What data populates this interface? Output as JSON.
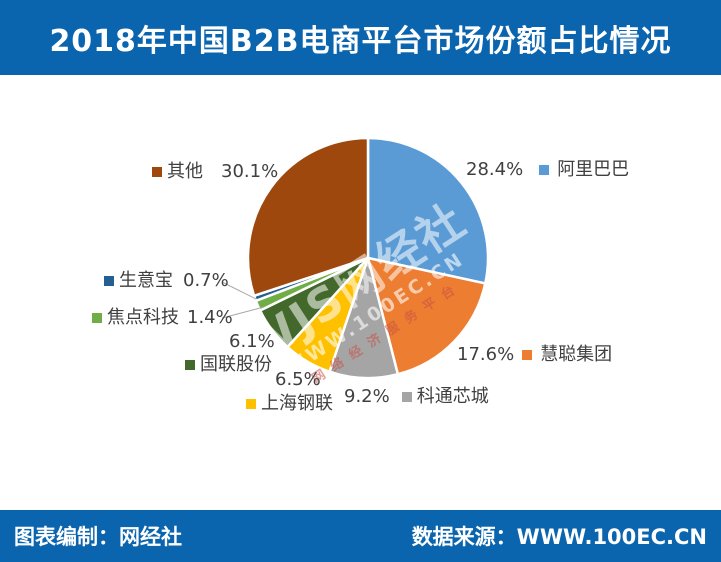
{
  "header": {
    "title": "2018年中国B2B电商平台市场份额占比情况"
  },
  "footer": {
    "left": "图表编制：网经社",
    "right": "数据来源：WWW.100EC.CN"
  },
  "watermark": {
    "line1": "WJS网经社",
    "line2": "WWW.100EC.CN",
    "line3": "网络经济服务平台"
  },
  "chart_data": {
    "type": "pie",
    "title": "2018年中国B2B电商平台市场份额占比情况",
    "start_angle_deg": 0,
    "direction": "clockwise",
    "slice_border_color": "#FFFFFF",
    "label_color": "#404040",
    "leader_line_color": "#A6A6A6",
    "slices": [
      {
        "label": "阿里巴巴",
        "value": 28.4,
        "value_text": "28.4%",
        "color": "#5B9BD5"
      },
      {
        "label": "慧聪集团",
        "value": 17.6,
        "value_text": "17.6%",
        "color": "#ED7D31"
      },
      {
        "label": "科通芯城",
        "value": 9.2,
        "value_text": "9.2%",
        "color": "#A5A5A5"
      },
      {
        "label": "上海钢联",
        "value": 6.5,
        "value_text": "6.5%",
        "color": "#FFC000"
      },
      {
        "label": "国联股份",
        "value": 6.1,
        "value_text": "6.1%",
        "color": "#43682B"
      },
      {
        "label": "焦点科技",
        "value": 1.4,
        "value_text": "1.4%",
        "color": "#70AD47"
      },
      {
        "label": "生意宝",
        "value": 0.7,
        "value_text": "0.7%",
        "color": "#255E91"
      },
      {
        "label": "其他",
        "value": 30.1,
        "value_text": "30.1%",
        "color": "#9E480E"
      }
    ]
  }
}
